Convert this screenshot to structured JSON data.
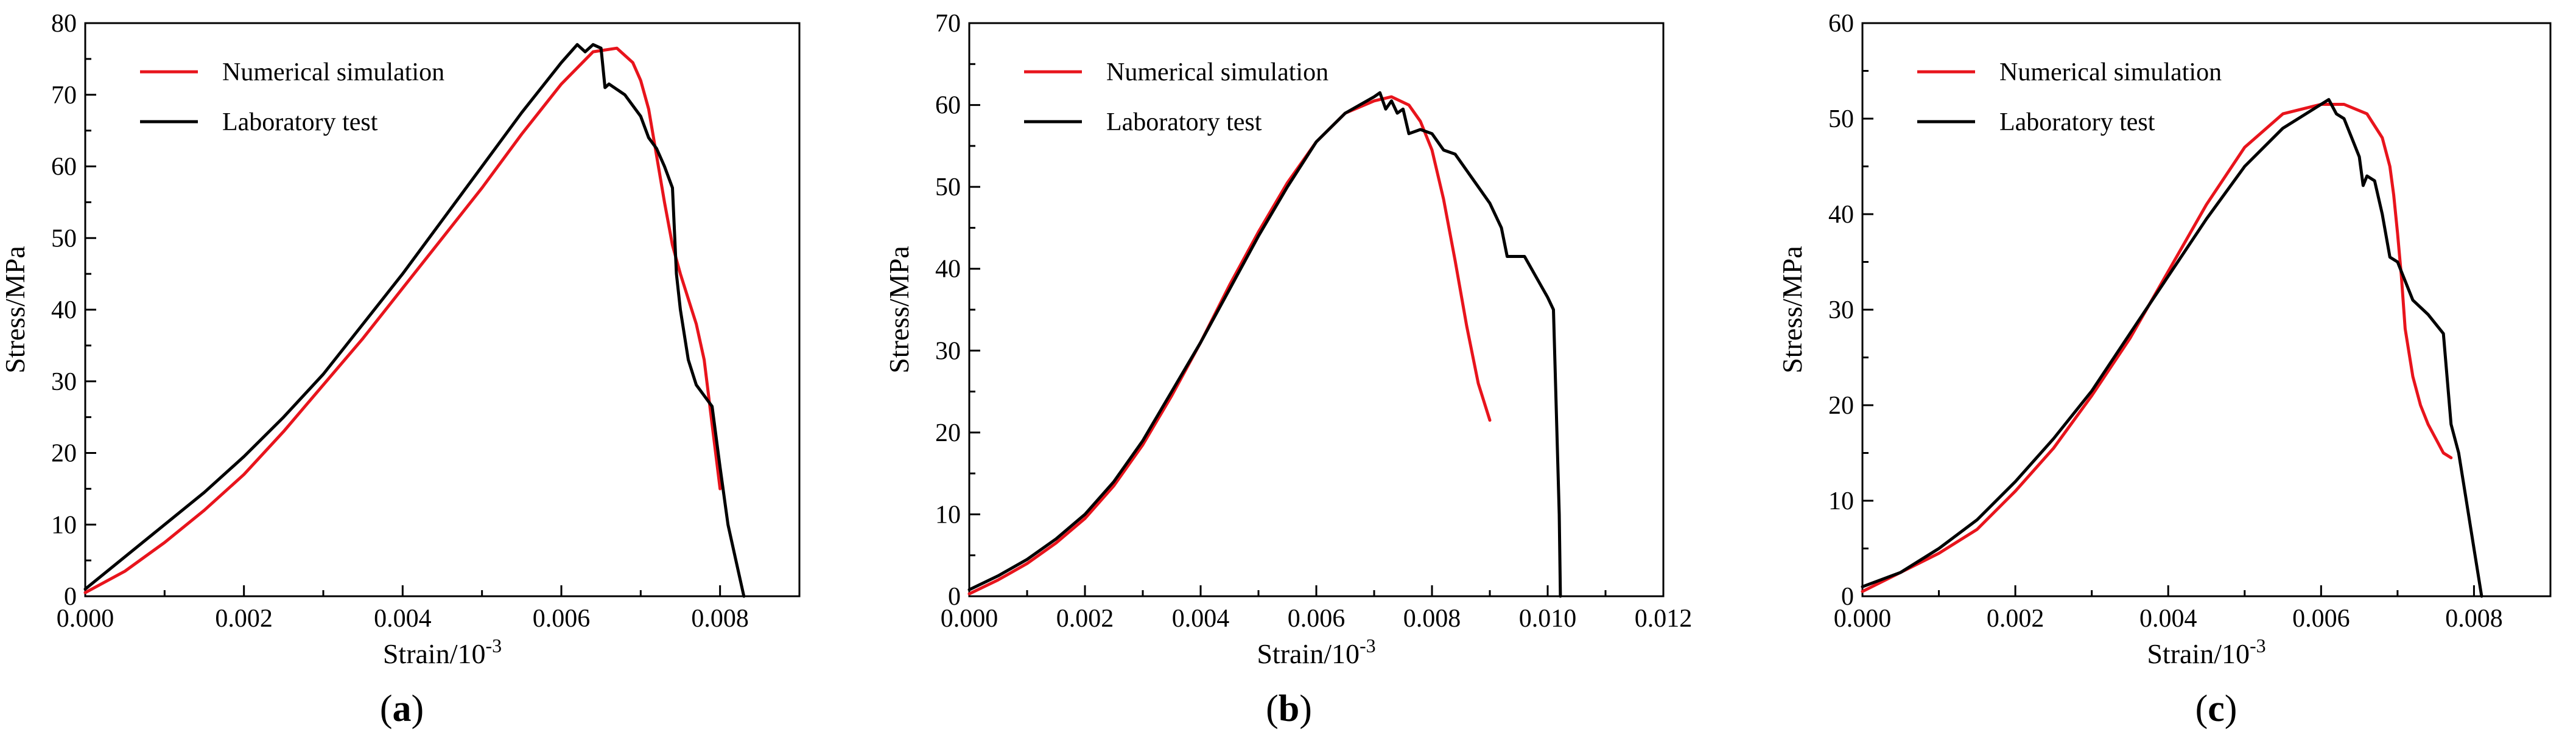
{
  "figure": {
    "panel_labels": [
      {
        "open": "(",
        "letter": "a",
        "close": ")"
      },
      {
        "open": "(",
        "letter": "b",
        "close": ")"
      },
      {
        "open": "(",
        "letter": "c",
        "close": ")"
      }
    ]
  },
  "colors": {
    "simulation": "#e8141c",
    "test": "#000000"
  },
  "chart_data": [
    {
      "type": "line",
      "panel": "a",
      "xlabel": "Strain/10",
      "xlabel_sup": "-3",
      "ylabel": "Stress/MPa",
      "xlim": [
        0,
        0.009
      ],
      "ylim": [
        0,
        80
      ],
      "xticks": [
        0,
        0.002,
        0.004,
        0.006,
        0.008
      ],
      "xtick_labels": [
        "0.000",
        "0.002",
        "0.004",
        "0.006",
        "0.008"
      ],
      "yticks": [
        0,
        10,
        20,
        30,
        40,
        50,
        60,
        70,
        80
      ],
      "ytick_labels": [
        "0",
        "10",
        "20",
        "30",
        "40",
        "50",
        "60",
        "70",
        "80"
      ],
      "legend": [
        "Numerical simulation",
        "Laboratory test"
      ],
      "legend_position": "top-left",
      "series": [
        {
          "name": "Numerical simulation",
          "color": "#e8141c",
          "x": [
            0,
            0.0005,
            0.001,
            0.0015,
            0.002,
            0.0025,
            0.003,
            0.0035,
            0.004,
            0.0045,
            0.005,
            0.0055,
            0.006,
            0.0064,
            0.0067,
            0.0069,
            0.007,
            0.0071,
            0.0072,
            0.0073,
            0.0074,
            0.0075,
            0.0076,
            0.0077,
            0.0078,
            0.0079,
            0.008
          ],
          "y": [
            0.5,
            3.5,
            7.5,
            12,
            17,
            23,
            29.5,
            36,
            43,
            50,
            57,
            64.5,
            71.5,
            76,
            76.5,
            74.5,
            72,
            68,
            61.5,
            55,
            49,
            45,
            41.5,
            38,
            33,
            24,
            15
          ]
        },
        {
          "name": "Laboratory test",
          "color": "#000000",
          "x": [
            0,
            0.0005,
            0.001,
            0.0015,
            0.002,
            0.0025,
            0.003,
            0.0035,
            0.004,
            0.0045,
            0.005,
            0.0055,
            0.006,
            0.0062,
            0.0063,
            0.0064,
            0.0065,
            0.00655,
            0.0066,
            0.0068,
            0.007,
            0.0071,
            0.0072,
            0.0073,
            0.0074,
            0.00745,
            0.0075,
            0.0076,
            0.0077,
            0.0078,
            0.0079,
            0.008,
            0.0081,
            0.0082,
            0.0083
          ],
          "y": [
            1,
            5.5,
            10,
            14.5,
            19.5,
            25,
            31,
            38,
            45,
            52.5,
            60,
            67.5,
            74.5,
            77,
            76,
            77,
            76.5,
            71,
            71.5,
            70,
            67,
            64,
            62.5,
            60,
            57,
            45,
            40,
            33,
            29.5,
            28,
            26.5,
            18,
            10,
            5,
            0
          ]
        }
      ]
    },
    {
      "type": "line",
      "panel": "b",
      "xlabel": "Strain/10",
      "xlabel_sup": "-3",
      "ylabel": "Stress/MPa",
      "xlim": [
        0,
        0.012
      ],
      "ylim": [
        0,
        70
      ],
      "xticks": [
        0,
        0.002,
        0.004,
        0.006,
        0.008,
        0.01,
        0.012
      ],
      "xtick_labels": [
        "0.000",
        "0.002",
        "0.004",
        "0.006",
        "0.008",
        "0.010",
        "0.012"
      ],
      "yticks": [
        0,
        10,
        20,
        30,
        40,
        50,
        60,
        70
      ],
      "ytick_labels": [
        "0",
        "10",
        "20",
        "30",
        "40",
        "50",
        "60",
        "70"
      ],
      "legend": [
        "Numerical simulation",
        "Laboratory test"
      ],
      "legend_position": "top-left",
      "series": [
        {
          "name": "Numerical simulation",
          "color": "#e8141c",
          "x": [
            0,
            0.0005,
            0.001,
            0.0015,
            0.002,
            0.0025,
            0.003,
            0.0035,
            0.004,
            0.0045,
            0.005,
            0.0055,
            0.006,
            0.0065,
            0.007,
            0.0073,
            0.0076,
            0.0078,
            0.008,
            0.0082,
            0.0084,
            0.0086,
            0.0088,
            0.009
          ],
          "y": [
            0.3,
            2,
            4,
            6.5,
            9.5,
            13.5,
            18.5,
            24.5,
            31,
            38,
            44.5,
            50.5,
            55.5,
            59,
            60.5,
            61,
            60,
            58,
            54.5,
            48.5,
            41,
            33,
            26,
            21.5
          ]
        },
        {
          "name": "Laboratory test",
          "color": "#000000",
          "x": [
            0,
            0.0005,
            0.001,
            0.0015,
            0.002,
            0.0025,
            0.003,
            0.0035,
            0.004,
            0.0045,
            0.005,
            0.0055,
            0.006,
            0.0065,
            0.007,
            0.0071,
            0.0072,
            0.0073,
            0.0074,
            0.0075,
            0.0076,
            0.0078,
            0.008,
            0.0082,
            0.0084,
            0.0086,
            0.0088,
            0.009,
            0.0092,
            0.0093,
            0.0094,
            0.0096,
            0.0098,
            0.01,
            0.0101,
            0.0102,
            0.01022
          ],
          "y": [
            0.8,
            2.5,
            4.5,
            7,
            10,
            14,
            19,
            25,
            31,
            37.5,
            44,
            50,
            55.5,
            59,
            61,
            61.5,
            59.5,
            60.5,
            59,
            59.5,
            56.5,
            57,
            56.5,
            54.5,
            54,
            52,
            50,
            48,
            45,
            41.5,
            41.5,
            41.5,
            39,
            36.5,
            35,
            10,
            0
          ]
        }
      ]
    },
    {
      "type": "line",
      "panel": "c",
      "xlabel": "Strain/10",
      "xlabel_sup": "-3",
      "ylabel": "Stress/MPa",
      "xlim": [
        0,
        0.009
      ],
      "ylim": [
        0,
        60
      ],
      "xticks": [
        0,
        0.002,
        0.004,
        0.006,
        0.008
      ],
      "xtick_labels": [
        "0.000",
        "0.002",
        "0.004",
        "0.006",
        "0.008"
      ],
      "yticks": [
        0,
        10,
        20,
        30,
        40,
        50,
        60
      ],
      "ytick_labels": [
        "0",
        "10",
        "20",
        "30",
        "40",
        "50",
        "60"
      ],
      "legend": [
        "Numerical simulation",
        "Laboratory test"
      ],
      "legend_position": "top-left",
      "series": [
        {
          "name": "Numerical simulation",
          "color": "#e8141c",
          "x": [
            0,
            0.0005,
            0.001,
            0.0015,
            0.002,
            0.0025,
            0.003,
            0.0035,
            0.004,
            0.0045,
            0.005,
            0.0055,
            0.006,
            0.0063,
            0.0066,
            0.0068,
            0.0069,
            0.00695,
            0.007,
            0.00705,
            0.0071,
            0.0072,
            0.0073,
            0.0074,
            0.0075,
            0.0076,
            0.0077
          ],
          "y": [
            0.5,
            2.5,
            4.5,
            7,
            11,
            15.5,
            21,
            27,
            34,
            41,
            47,
            50.5,
            51.5,
            51.5,
            50.5,
            48,
            45,
            42,
            38,
            33.5,
            28,
            23,
            20,
            18,
            16.5,
            15,
            14.5
          ]
        },
        {
          "name": "Laboratory test",
          "color": "#000000",
          "x": [
            0,
            0.0005,
            0.001,
            0.0015,
            0.002,
            0.0025,
            0.003,
            0.0035,
            0.004,
            0.0045,
            0.005,
            0.0055,
            0.006,
            0.0061,
            0.0062,
            0.0063,
            0.0064,
            0.0065,
            0.00655,
            0.0066,
            0.0067,
            0.0068,
            0.0069,
            0.007,
            0.0072,
            0.0074,
            0.0076,
            0.0077,
            0.0078,
            0.0079,
            0.008,
            0.0081
          ],
          "y": [
            1,
            2.5,
            5,
            8,
            12,
            16.5,
            21.5,
            27.5,
            33.5,
            39.5,
            45,
            49,
            51.5,
            52,
            50.5,
            50,
            48,
            46,
            43,
            44,
            43.5,
            40,
            35.5,
            35,
            31,
            29.5,
            27.5,
            18,
            15,
            10,
            5,
            0
          ]
        }
      ]
    }
  ]
}
